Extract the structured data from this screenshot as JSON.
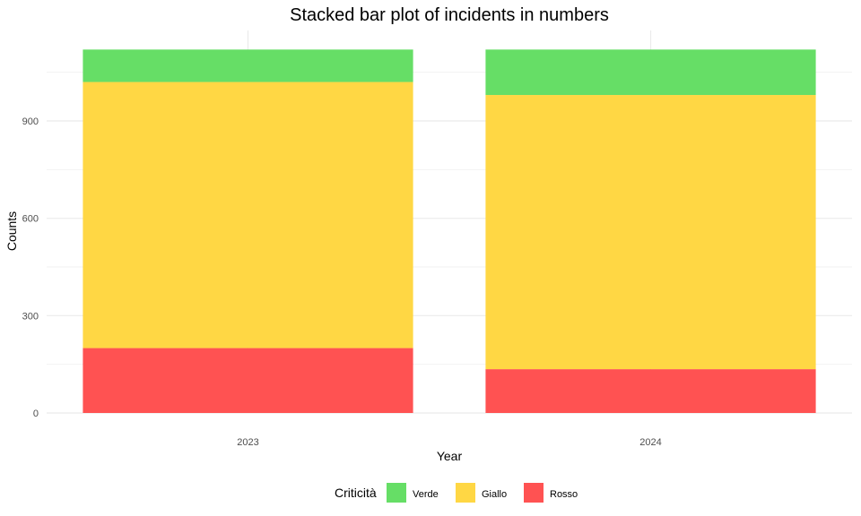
{
  "chart_data": {
    "type": "bar",
    "stacked": true,
    "title": "Stacked bar plot of incidents in numbers",
    "xlabel": "Year",
    "ylabel": "Counts",
    "categories": [
      "2023",
      "2024"
    ],
    "series": [
      {
        "name": "Rosso",
        "values": [
          200,
          135
        ],
        "color": "#ff5252"
      },
      {
        "name": "Giallo",
        "values": [
          820,
          845
        ],
        "color": "#ffd744"
      },
      {
        "name": "Verde",
        "values": [
          100,
          140
        ],
        "color": "#66de66"
      }
    ],
    "ylim": [
      0,
      1120
    ],
    "yticks": [
      0,
      300,
      600,
      900
    ],
    "grid": true,
    "legend": {
      "title": "Criticità",
      "position": "bottom",
      "order": [
        "Verde",
        "Giallo",
        "Rosso"
      ]
    }
  }
}
